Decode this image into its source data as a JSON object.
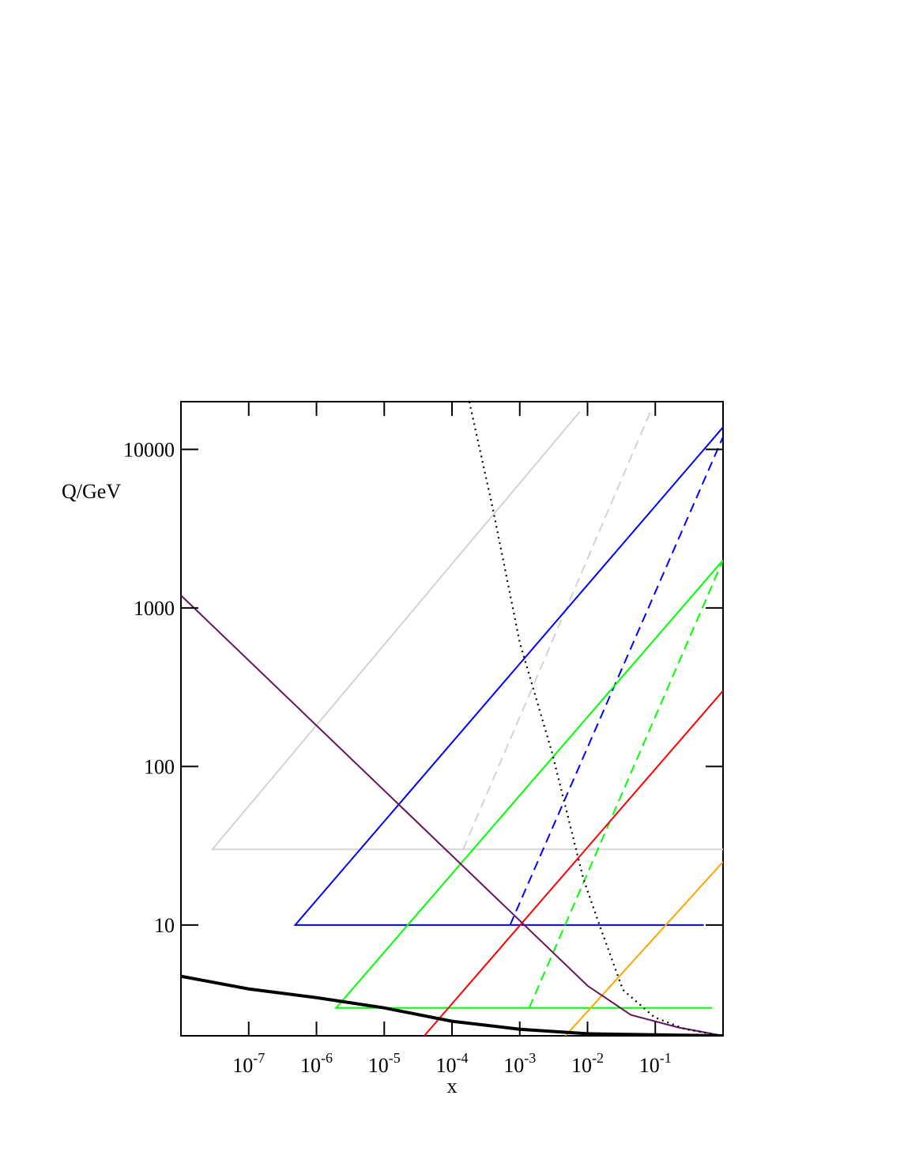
{
  "chart_data": {
    "type": "line",
    "xlabel": "x",
    "ylabel": "Q/GeV",
    "xscale": "log",
    "yscale": "log",
    "xlim": [
      1e-08,
      1
    ],
    "ylim": [
      2,
      20000
    ],
    "xticks": [
      {
        "value": 1e-07,
        "label": "10",
        "exponent": "-7"
      },
      {
        "value": 1e-06,
        "label": "10",
        "exponent": "-6"
      },
      {
        "value": 1e-05,
        "label": "10",
        "exponent": "-5"
      },
      {
        "value": 0.0001,
        "label": "10",
        "exponent": "-4"
      },
      {
        "value": 0.001,
        "label": "10",
        "exponent": "-3"
      },
      {
        "value": 0.01,
        "label": "10",
        "exponent": "-2"
      },
      {
        "value": 0.1,
        "label": "10",
        "exponent": "-1"
      }
    ],
    "yticks": [
      10,
      100,
      1000,
      10000
    ],
    "series": [
      {
        "color": "#d3d3d3",
        "linestyle": "solid",
        "x": [
          1,
          2.9e-08,
          0.0077
        ],
        "values": [
          30,
          30,
          17300
        ]
      },
      {
        "color": "#d3d3d3",
        "linestyle": "dashed",
        "x": [
          0.000146,
          0.085
        ],
        "values": [
          30,
          17300
        ]
      },
      {
        "color": "#0000ff",
        "linestyle": "solid",
        "x": [
          0.52,
          4.85e-07,
          1
        ],
        "values": [
          10,
          10,
          13800
        ]
      },
      {
        "color": "#0000ff",
        "linestyle": "dashed",
        "x": [
          0.00072,
          1
        ],
        "values": [
          10,
          12000
        ]
      },
      {
        "color": "#00ff00",
        "linestyle": "solid",
        "x": [
          0.69,
          1.95e-06,
          1
        ],
        "values": [
          3,
          3,
          2000
        ]
      },
      {
        "color": "#00ff00",
        "linestyle": "dashed",
        "x": [
          0.00138,
          1
        ],
        "values": [
          3,
          2000
        ]
      },
      {
        "color": "#ff0000",
        "linestyle": "solid",
        "x": [
          3.9e-05,
          1
        ],
        "values": [
          2,
          300
        ]
      },
      {
        "color": "#ffa500",
        "linestyle": "solid",
        "x": [
          0.00472,
          1
        ],
        "values": [
          2,
          25
        ]
      },
      {
        "color": "#67135f",
        "linestyle": "solid",
        "x": [
          1e-08,
          0.01,
          0.0436,
          0.217,
          1
        ],
        "values": [
          1200,
          4.14,
          2.71,
          2.26,
          2.0
        ]
      },
      {
        "color": "#000000",
        "linestyle": "dotted",
        "x": [
          0.00018,
          0.0004,
          0.001,
          0.003,
          0.0087,
          0.015,
          0.0333,
          0.097,
          0.28,
          1
        ],
        "values": [
          20000,
          4240,
          605,
          122,
          19.5,
          10,
          3.9,
          2.62,
          2.2,
          2.0
        ]
      },
      {
        "color": "#000000",
        "linestyle": "thick",
        "x": [
          1e-08,
          1e-07,
          1e-06,
          1e-05,
          0.0001,
          0.001,
          0.01,
          1
        ],
        "values": [
          4.75,
          3.95,
          3.48,
          3.0,
          2.47,
          2.2,
          2.06,
          2.0
        ]
      }
    ]
  }
}
